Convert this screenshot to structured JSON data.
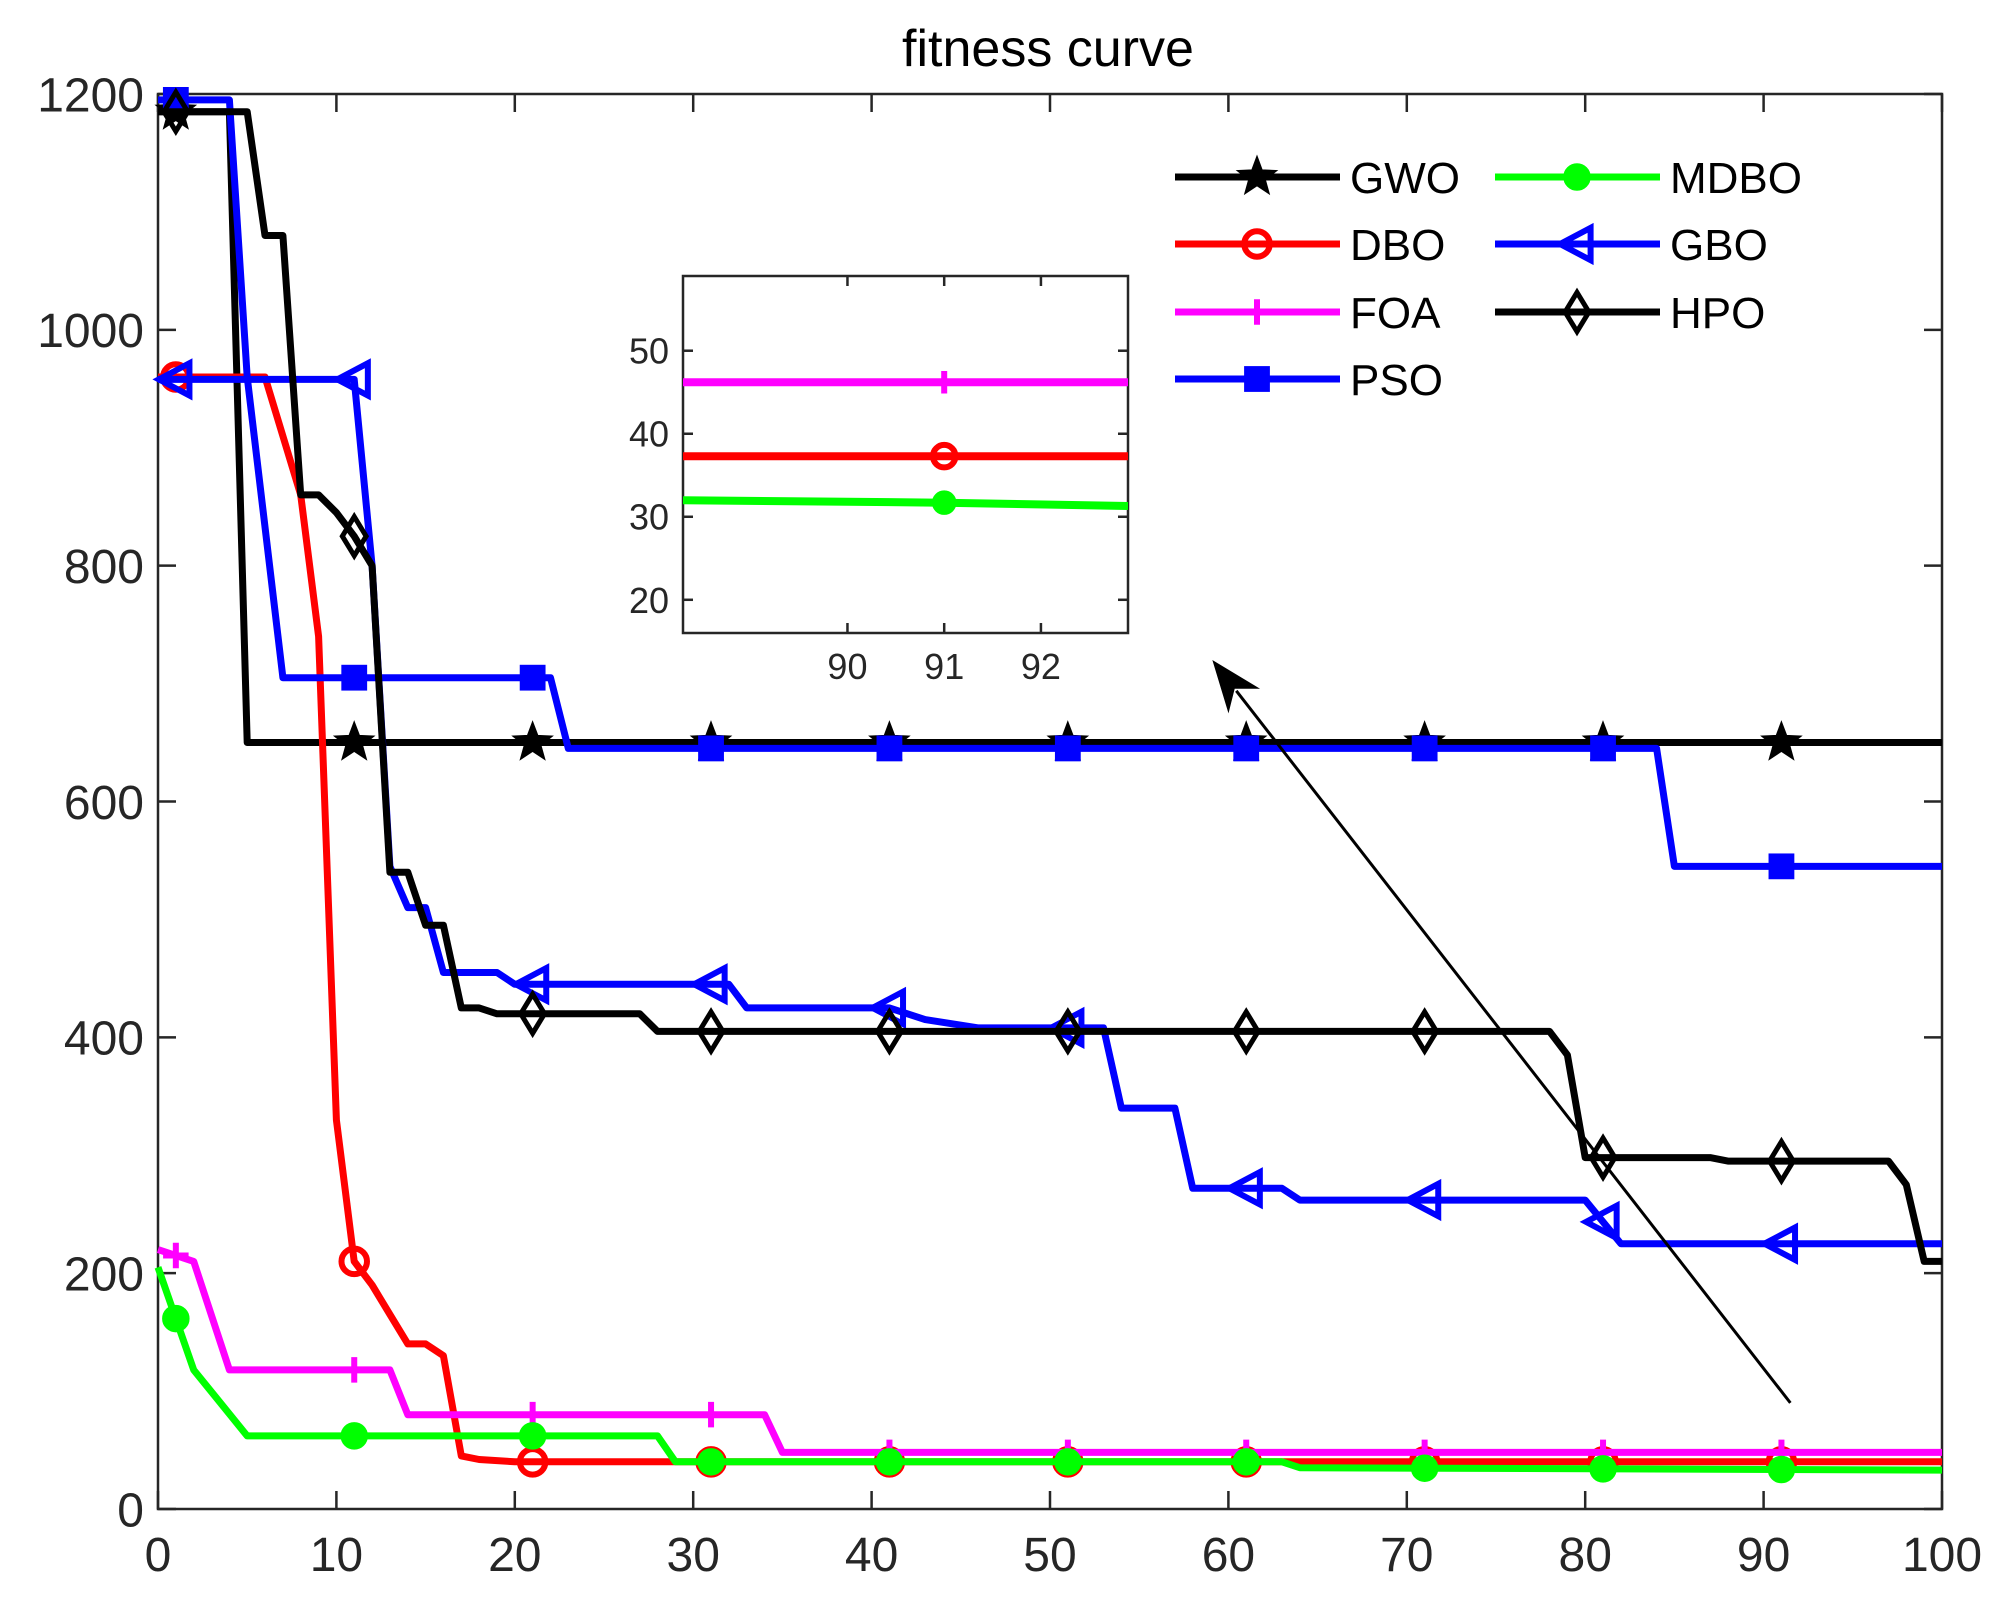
{
  "chart_data": {
    "type": "line",
    "title": "fitness curve",
    "xlabel": "",
    "ylabel": "",
    "xlim": [
      0,
      100
    ],
    "ylim": [
      0,
      1200
    ],
    "xticks": [
      0,
      10,
      20,
      30,
      40,
      50,
      60,
      70,
      80,
      90,
      100
    ],
    "yticks": [
      0,
      200,
      400,
      600,
      800,
      1000,
      1200
    ],
    "legend_position": "top-right",
    "marker_x": [
      1,
      11,
      21,
      31,
      41,
      51,
      61,
      71,
      81,
      91
    ],
    "series": [
      {
        "name": "GWO",
        "color": "#000000",
        "marker": "star",
        "points": [
          [
            0,
            1185
          ],
          [
            4,
            1185
          ],
          [
            5,
            650
          ],
          [
            100,
            650
          ]
        ]
      },
      {
        "name": "DBO",
        "color": "#ff0000",
        "marker": "circle",
        "points": [
          [
            0,
            960
          ],
          [
            6,
            960
          ],
          [
            8,
            860
          ],
          [
            9,
            740
          ],
          [
            10,
            330
          ],
          [
            11,
            210
          ],
          [
            12,
            190
          ],
          [
            13,
            165
          ],
          [
            14,
            140
          ],
          [
            15,
            140
          ],
          [
            16,
            130
          ],
          [
            17,
            45
          ],
          [
            18,
            42
          ],
          [
            20,
            40
          ],
          [
            100,
            40
          ]
        ]
      },
      {
        "name": "FOA",
        "color": "#ff00ff",
        "marker": "plus",
        "points": [
          [
            0,
            220
          ],
          [
            2,
            210
          ],
          [
            4,
            118
          ],
          [
            13,
            118
          ],
          [
            14,
            80
          ],
          [
            34,
            80
          ],
          [
            35,
            48
          ],
          [
            100,
            48
          ]
        ]
      },
      {
        "name": "PSO",
        "color": "#0000ff",
        "marker": "square",
        "points": [
          [
            0,
            1195
          ],
          [
            4,
            1195
          ],
          [
            5,
            960
          ],
          [
            7,
            705
          ],
          [
            22,
            705
          ],
          [
            23,
            645
          ],
          [
            84,
            645
          ],
          [
            85,
            545
          ],
          [
            100,
            545
          ]
        ]
      },
      {
        "name": "MDBO",
        "color": "#00ff00",
        "marker": "filled-circle",
        "points": [
          [
            0,
            205
          ],
          [
            2,
            118
          ],
          [
            5,
            62
          ],
          [
            28,
            62
          ],
          [
            29,
            40
          ],
          [
            63,
            40
          ],
          [
            64,
            35
          ],
          [
            100,
            33
          ]
        ]
      },
      {
        "name": "GBO",
        "color": "#0000ff",
        "marker": "triangle-left",
        "points": [
          [
            0,
            958
          ],
          [
            11,
            958
          ],
          [
            12,
            800
          ],
          [
            13,
            545
          ],
          [
            14,
            510
          ],
          [
            15,
            510
          ],
          [
            16,
            455
          ],
          [
            19,
            455
          ],
          [
            20,
            445
          ],
          [
            32,
            445
          ],
          [
            33,
            425
          ],
          [
            41,
            425
          ],
          [
            43,
            415
          ],
          [
            46,
            408
          ],
          [
            53,
            408
          ],
          [
            54,
            340
          ],
          [
            57,
            340
          ],
          [
            58,
            272
          ],
          [
            63,
            272
          ],
          [
            64,
            262
          ],
          [
            80,
            262
          ],
          [
            82,
            225
          ],
          [
            100,
            225
          ]
        ]
      },
      {
        "name": "HPO",
        "color": "#000000",
        "marker": "diamond",
        "points": [
          [
            0,
            1185
          ],
          [
            5,
            1185
          ],
          [
            6,
            1080
          ],
          [
            7,
            1080
          ],
          [
            8,
            860
          ],
          [
            9,
            860
          ],
          [
            10,
            845
          ],
          [
            11,
            825
          ],
          [
            12,
            800
          ],
          [
            13,
            540
          ],
          [
            14,
            540
          ],
          [
            15,
            495
          ],
          [
            16,
            495
          ],
          [
            17,
            425
          ],
          [
            18,
            425
          ],
          [
            19,
            420
          ],
          [
            27,
            420
          ],
          [
            28,
            405
          ],
          [
            78,
            405
          ],
          [
            79,
            385
          ],
          [
            80,
            298
          ],
          [
            87,
            298
          ],
          [
            88,
            295
          ],
          [
            97,
            295
          ],
          [
            98,
            275
          ],
          [
            99,
            210
          ],
          [
            100,
            210
          ]
        ]
      }
    ],
    "inset": {
      "xlim": [
        88.3,
        92.9
      ],
      "ylim": [
        16,
        59
      ],
      "xticks": [
        90,
        91,
        92
      ],
      "yticks": [
        20,
        30,
        40,
        50
      ],
      "marker_x": [
        91
      ],
      "series": [
        {
          "name": "FOA",
          "color": "#ff00ff",
          "marker": "plus",
          "points": [
            [
              88.3,
              46.2
            ],
            [
              92.9,
              46.2
            ]
          ]
        },
        {
          "name": "DBO",
          "color": "#ff0000",
          "marker": "circle",
          "points": [
            [
              88.3,
              37.3
            ],
            [
              92.9,
              37.3
            ]
          ]
        },
        {
          "name": "MDBO",
          "color": "#00ff00",
          "marker": "filled-circle",
          "points": [
            [
              88.3,
              32.0
            ],
            [
              91,
              31.7
            ],
            [
              92.9,
              31.3
            ]
          ]
        }
      ]
    },
    "annotation": {
      "type": "arrow",
      "from": [
        91.5,
        90
      ],
      "to": [
        59.1,
        720
      ],
      "color": "#000000"
    }
  }
}
